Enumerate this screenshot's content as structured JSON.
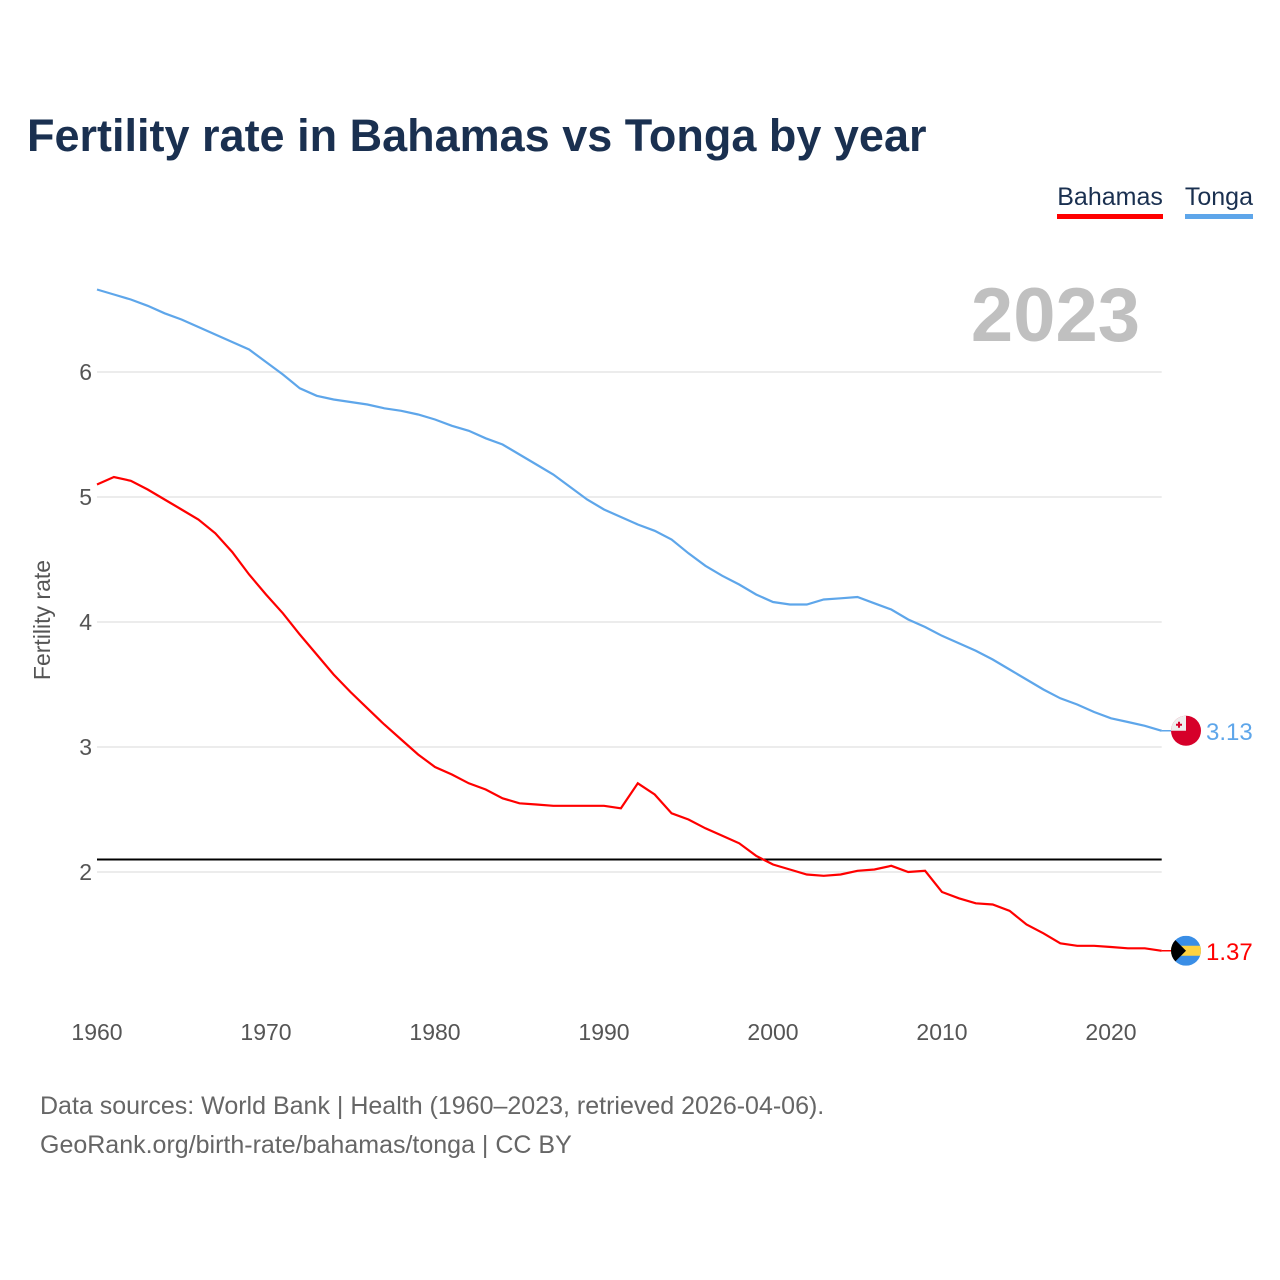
{
  "chart_data": {
    "type": "line",
    "title": "Fertility rate in Bahamas vs Tonga by year",
    "xlabel": "",
    "ylabel": "Fertility rate",
    "xlim": [
      1960,
      2023
    ],
    "ylim": [
      1.0,
      6.8
    ],
    "x_ticks": [
      1960,
      1970,
      1980,
      1990,
      2000,
      2010,
      2020
    ],
    "y_ticks": [
      2,
      3,
      4,
      5,
      6
    ],
    "grid": true,
    "legend_placement": "top-right",
    "year_label": "2023",
    "reference_line": 2.1,
    "x": [
      1960,
      1961,
      1962,
      1963,
      1964,
      1965,
      1966,
      1967,
      1968,
      1969,
      1970,
      1971,
      1972,
      1973,
      1974,
      1975,
      1976,
      1977,
      1978,
      1979,
      1980,
      1981,
      1982,
      1983,
      1984,
      1985,
      1986,
      1987,
      1988,
      1989,
      1990,
      1991,
      1992,
      1993,
      1994,
      1995,
      1996,
      1997,
      1998,
      1999,
      2000,
      2001,
      2002,
      2003,
      2004,
      2005,
      2006,
      2007,
      2008,
      2009,
      2010,
      2011,
      2012,
      2013,
      2014,
      2015,
      2016,
      2017,
      2018,
      2019,
      2020,
      2021,
      2022,
      2023
    ],
    "series": [
      {
        "name": "Bahamas",
        "color": "#ff0000",
        "end_label": "1.37",
        "values": [
          5.1,
          5.16,
          5.13,
          5.06,
          4.98,
          4.9,
          4.82,
          4.71,
          4.56,
          4.38,
          4.22,
          4.07,
          3.9,
          3.74,
          3.58,
          3.44,
          3.31,
          3.18,
          3.06,
          2.94,
          2.84,
          2.78,
          2.71,
          2.66,
          2.59,
          2.55,
          2.54,
          2.53,
          2.53,
          2.53,
          2.53,
          2.51,
          2.71,
          2.62,
          2.47,
          2.42,
          2.35,
          2.29,
          2.23,
          2.13,
          2.06,
          2.02,
          1.98,
          1.97,
          1.98,
          2.01,
          2.02,
          2.05,
          2.0,
          2.01,
          1.84,
          1.79,
          1.75,
          1.74,
          1.69,
          1.58,
          1.51,
          1.43,
          1.41,
          1.41,
          1.4,
          1.39,
          1.39,
          1.37
        ]
      },
      {
        "name": "Tonga",
        "color": "#5ea6ea",
        "end_label": "3.13",
        "values": [
          6.66,
          6.62,
          6.58,
          6.53,
          6.47,
          6.42,
          6.36,
          6.3,
          6.24,
          6.18,
          6.08,
          5.98,
          5.87,
          5.81,
          5.78,
          5.76,
          5.74,
          5.71,
          5.69,
          5.66,
          5.62,
          5.57,
          5.53,
          5.47,
          5.42,
          5.34,
          5.26,
          5.18,
          5.08,
          4.98,
          4.9,
          4.84,
          4.78,
          4.73,
          4.66,
          4.55,
          4.45,
          4.37,
          4.3,
          4.22,
          4.16,
          4.14,
          4.14,
          4.18,
          4.19,
          4.2,
          4.15,
          4.1,
          4.02,
          3.96,
          3.89,
          3.83,
          3.77,
          3.7,
          3.62,
          3.54,
          3.46,
          3.39,
          3.34,
          3.28,
          3.23,
          3.2,
          3.17,
          3.13
        ]
      }
    ]
  },
  "source_line1": "Data sources: World Bank | Health (1960–2023, retrieved 2026-04-06).",
  "source_line2": "GeoRank.org/birth-rate/bahamas/tonga | CC BY"
}
